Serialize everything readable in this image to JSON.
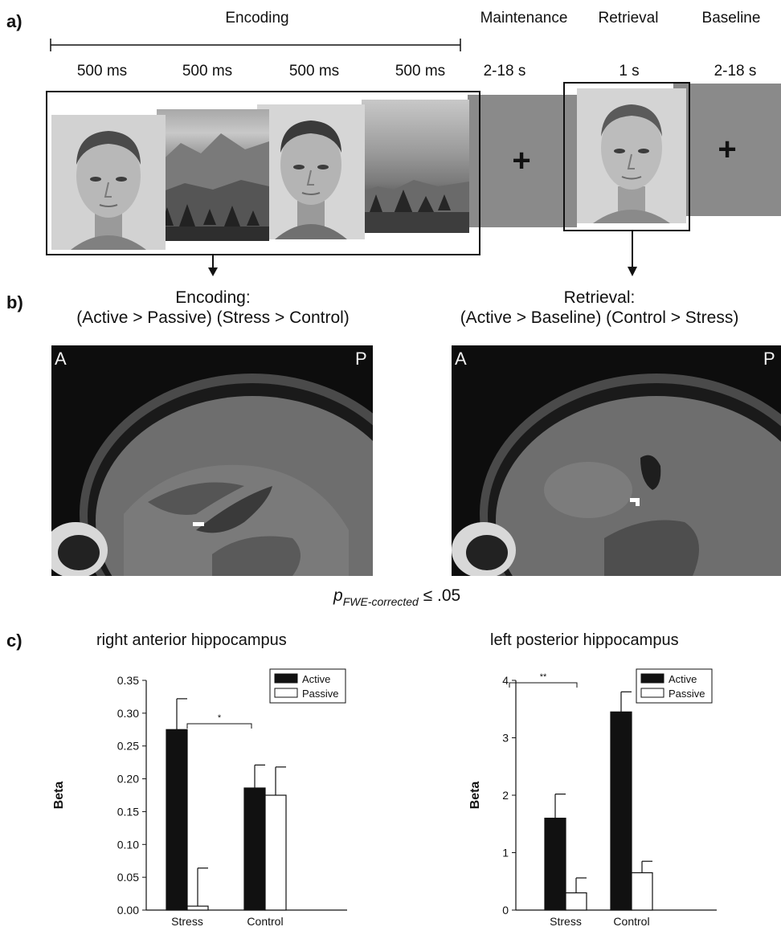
{
  "panel_a": {
    "label": "a)",
    "phases": {
      "encoding": "Encoding",
      "maintenance": "Maintenance",
      "retrieval": "Retrieval",
      "baseline": "Baseline"
    },
    "durations": [
      "500 ms",
      "500 ms",
      "500 ms",
      "500 ms",
      "2-18 s",
      "1 s",
      "2-18 s"
    ],
    "fixation_symbol": "+"
  },
  "panel_b": {
    "label": "b)",
    "encoding_title_line1": "Encoding:",
    "encoding_title_line2": "(Active > Passive) (Stress > Control)",
    "retrieval_title_line1": "Retrieval:",
    "retrieval_title_line2": "(Active > Baseline) (Control > Stress)",
    "orientation_anterior": "A",
    "orientation_posterior": "P",
    "threshold_p": "p",
    "threshold_sub": "FWE-corrected",
    "threshold_rest": " ≤ .05"
  },
  "panel_c": {
    "label": "c)",
    "legend": {
      "active": "Active",
      "passive": "Passive"
    },
    "colors": {
      "active": "#111111",
      "passive": "#ffffff"
    }
  },
  "chart_data": [
    {
      "type": "bar",
      "title": "right anterior hippocampus",
      "ylabel": "Beta",
      "categories": [
        "Stress",
        "Control"
      ],
      "ylim": [
        0,
        0.35
      ],
      "yticks": [
        "0.00",
        "0.05",
        "0.10",
        "0.15",
        "0.20",
        "0.25",
        "0.30",
        "0.35"
      ],
      "series": [
        {
          "name": "Active",
          "values": [
            0.275,
            0.186
          ],
          "errors": [
            0.047,
            0.035
          ]
        },
        {
          "name": "Passive",
          "values": [
            0.006,
            0.175
          ],
          "errors": [
            0.058,
            0.043
          ]
        }
      ],
      "significance": "*",
      "legend_position": "top-right"
    },
    {
      "type": "bar",
      "title": "left posterior hippocampus",
      "ylabel": "Beta",
      "categories": [
        "Stress",
        "Control"
      ],
      "ylim": [
        0,
        4
      ],
      "yticks": [
        "0",
        "1",
        "2",
        "3",
        "4"
      ],
      "series": [
        {
          "name": "Active",
          "values": [
            1.6,
            3.45
          ],
          "errors": [
            0.42,
            0.35
          ]
        },
        {
          "name": "Passive",
          "values": [
            0.3,
            0.65
          ],
          "errors": [
            0.26,
            0.2
          ]
        }
      ],
      "significance": "**",
      "legend_position": "top-right"
    }
  ]
}
